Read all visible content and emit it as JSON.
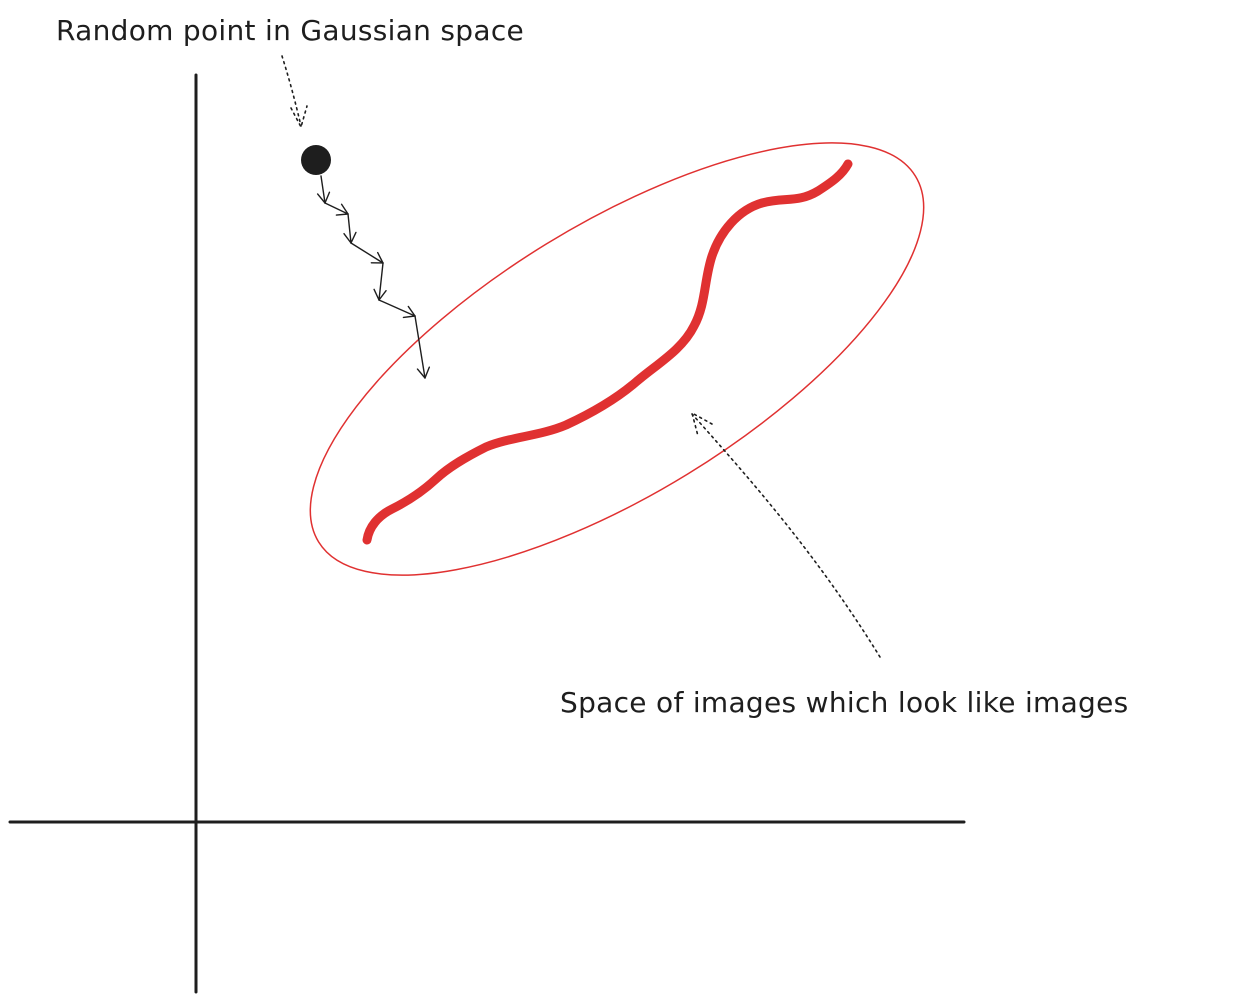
{
  "labels": {
    "random_point": "Random point in Gaussian space",
    "image_space": "Space of images which look like images"
  },
  "colors": {
    "ink": "#1e1e1e",
    "manifold": "#e03131"
  },
  "elements": {
    "axes": "x-y axes",
    "start_point": "filled black circle",
    "denoising_path": "zigzag arrow steps",
    "ellipse": "red ellipse outline",
    "manifold_curve": "thick red wavy curve"
  }
}
